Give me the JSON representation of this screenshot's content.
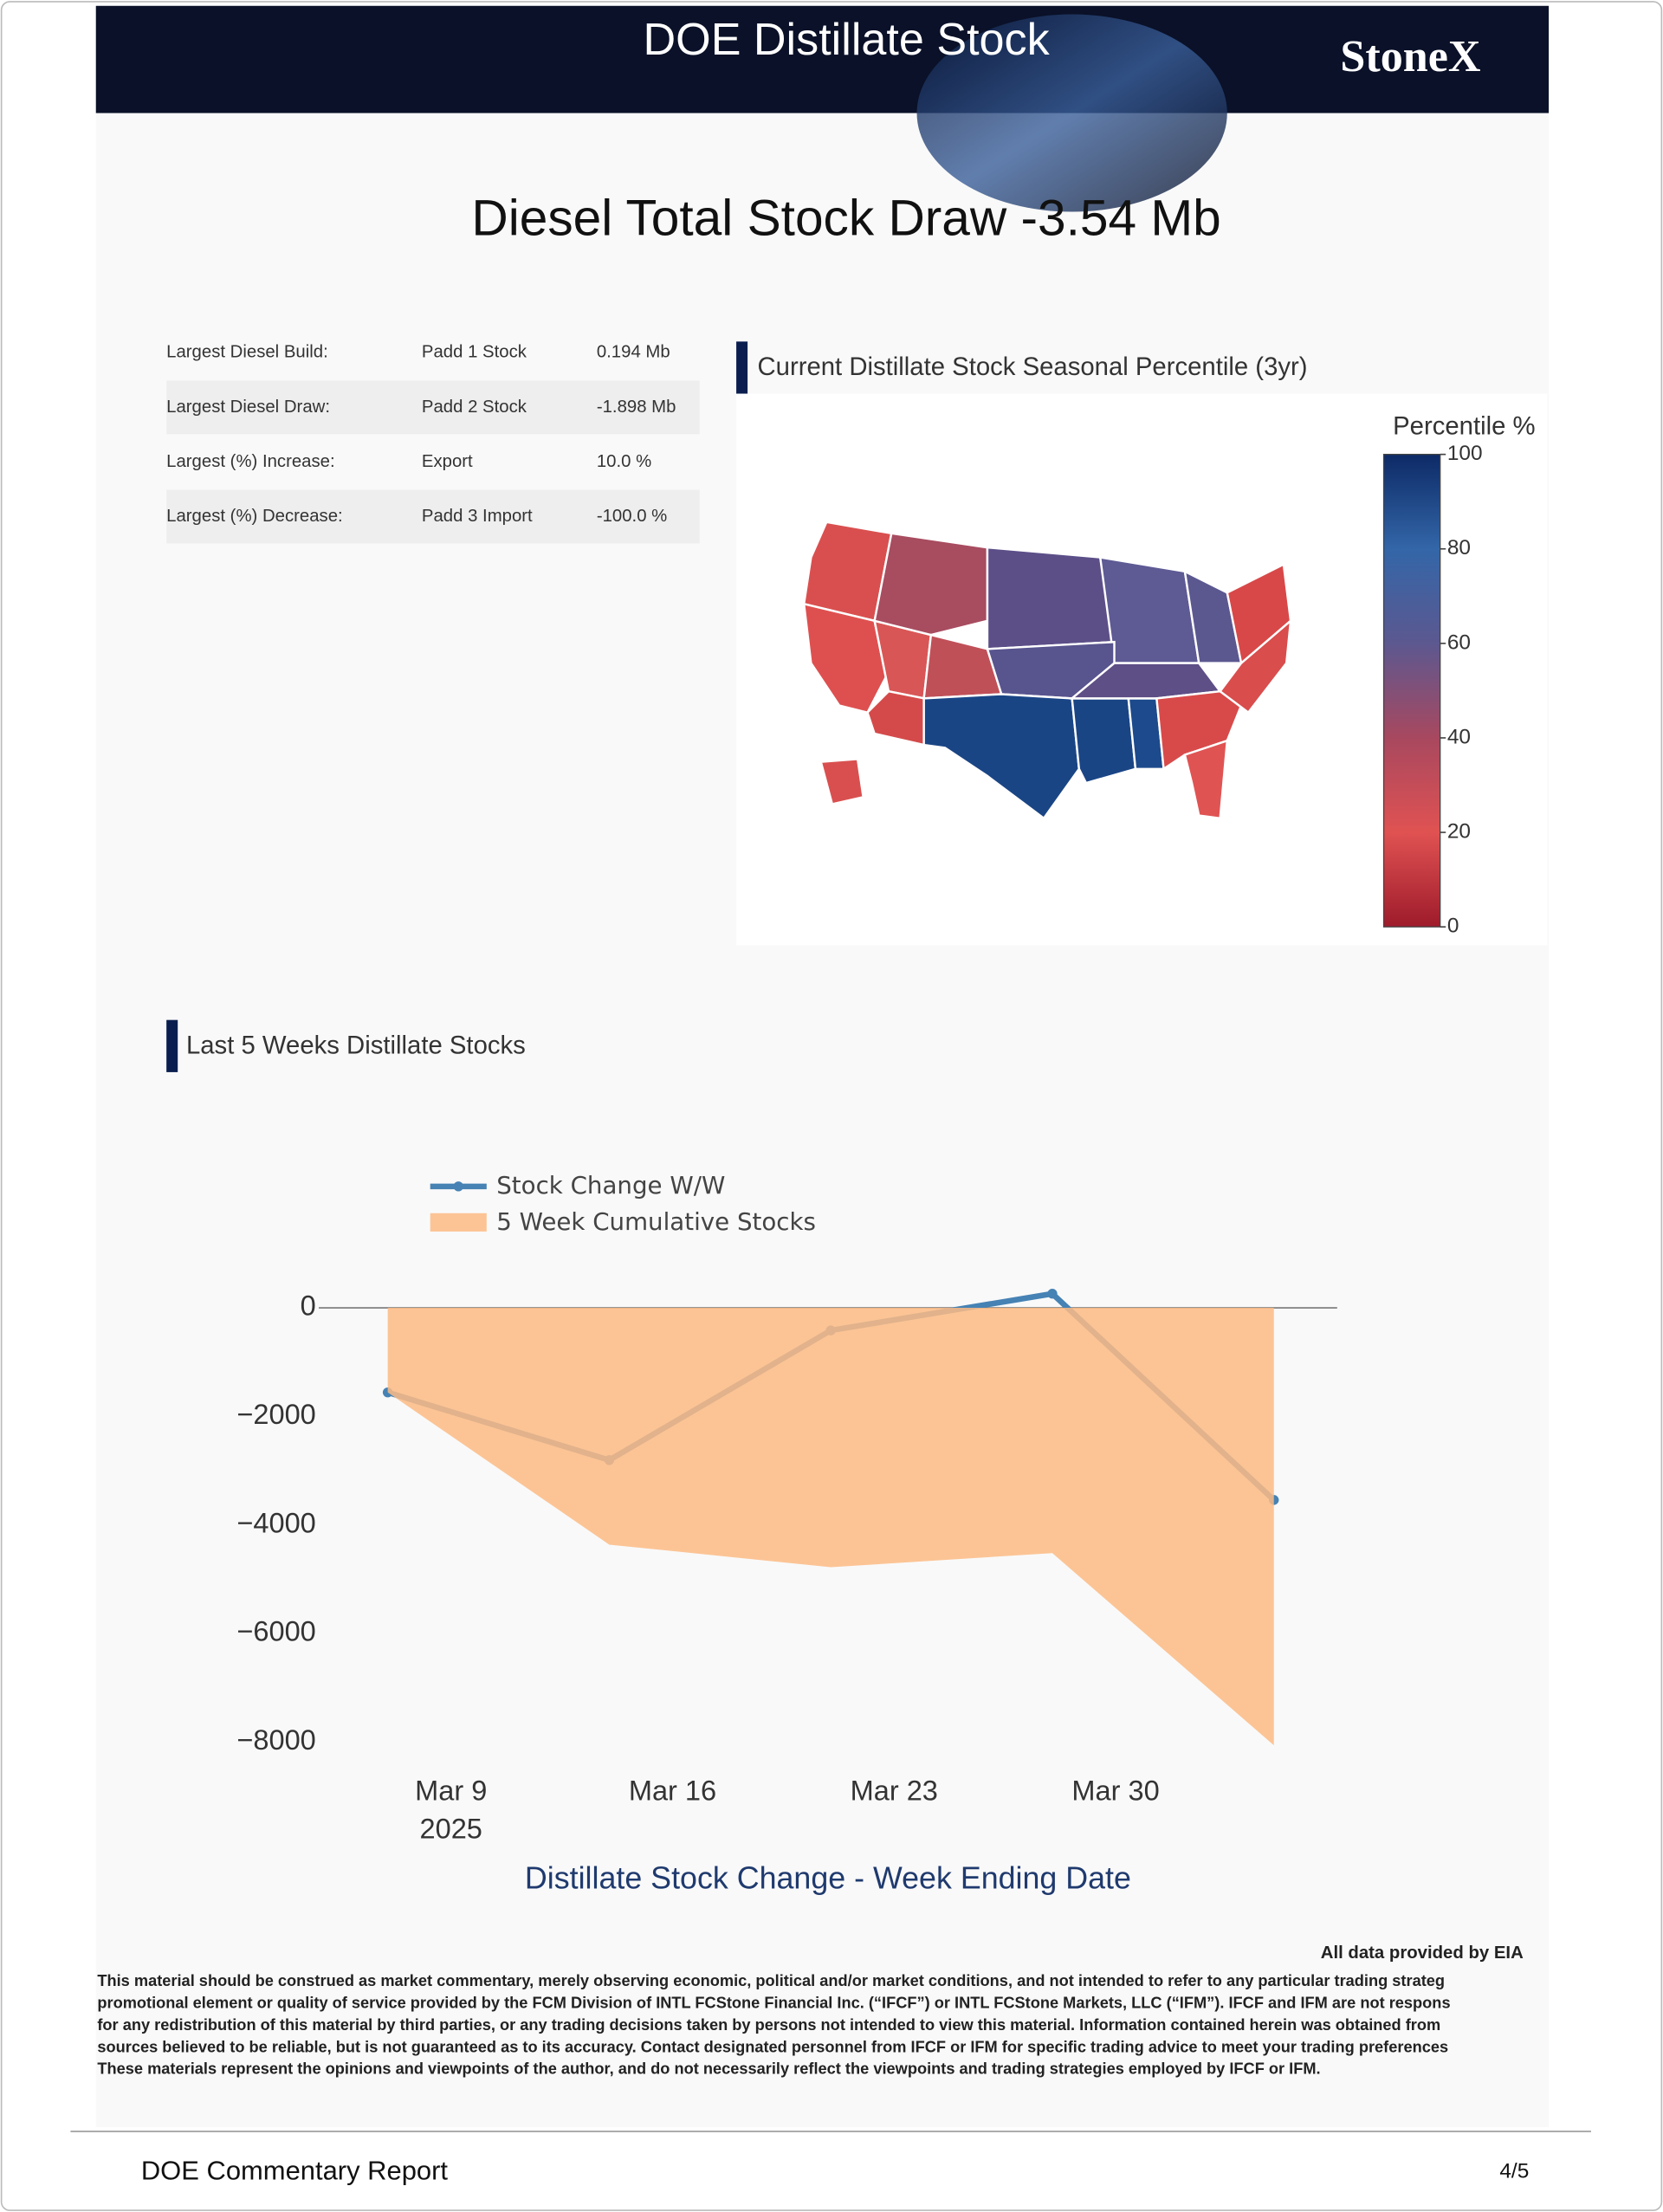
{
  "header": {
    "banner_title": "DOE Distillate Stock",
    "logo": "StoneX"
  },
  "title": "Diesel Total Stock Draw -3.54 Mb",
  "table": {
    "rows": [
      [
        "Largest Diesel Build:",
        "Padd 1 Stock",
        "0.194 Mb"
      ],
      [
        "Largest Diesel Draw:",
        "Padd 2 Stock",
        "-1.898 Mb"
      ],
      [
        "Largest (%) Increase:",
        "Export",
        "10.0 %"
      ],
      [
        "Largest (%) Decrease:",
        "Padd 3 Import",
        "-100.0 %"
      ]
    ]
  },
  "map": {
    "title": "Current Distillate Stock Seasonal Percentile (3yr)",
    "colorbar_title": "Percentile %",
    "clim": [
      0,
      100
    ],
    "colorbar_ticks": [
      0,
      20,
      40,
      60,
      80,
      100
    ]
  },
  "chart_data": {
    "type": "line",
    "section_title": "Last 5 Weeks Distillate Stocks",
    "x_label": "Distillate Stock Change - Week Ending Date",
    "x": [
      "2025-03-07",
      "2025-03-14",
      "2025-03-21",
      "2025-03-28",
      "2025-04-04"
    ],
    "series": [
      {
        "name": "Stock Change W/W",
        "color": "#4682b4",
        "mode": "line",
        "values": [
          -1558,
          -2805,
          -416,
          260,
          -3540
        ]
      },
      {
        "name": "5 Week Cumulative Stocks",
        "color": "#fdbb84",
        "mode": "area",
        "values": [
          -1558,
          -4363,
          -4779,
          -4519,
          -8059
        ]
      }
    ],
    "xlim": [
      "2025-03-05",
      "2025-04-06"
    ],
    "xticks": [
      {
        "value": "2025-03-09",
        "label": "Mar 9",
        "sublabel": "2025"
      },
      {
        "value": "2025-03-16",
        "label": "Mar 16"
      },
      {
        "value": "2025-03-23",
        "label": "Mar 23"
      },
      {
        "value": "2025-03-30",
        "label": "Mar 30"
      }
    ],
    "ylim": [
      -8300,
      600
    ],
    "yticks": [
      0,
      {
        "value": -2000,
        "label": "−2000"
      },
      {
        "value": -4000,
        "label": "−4000"
      },
      {
        "value": -6000,
        "label": "−6000"
      },
      {
        "value": -8000,
        "label": "−8000"
      }
    ],
    "zeroline": true,
    "grid": false,
    "legend": "top-left"
  },
  "source_note": "All data provided by EIA",
  "disclaimer": [
    "This material should be construed as market commentary, merely observing economic, political and/or market conditions, and not intended to refer to any particular trading strateg",
    "promotional element or quality of service provided by the FCM Division of INTL FCStone Financial Inc. (“IFCF”) or INTL FCStone Markets, LLC (“IFM”). IFCF and IFM are not respons",
    "for any redistribution of this material by third parties, or any trading decisions taken by persons not intended to view this material. Information contained herein was obtained from",
    "sources believed to be reliable, but is not guaranteed as to its accuracy. Contact designated personnel from IFCF or IFM for specific trading advice to meet your trading preferences",
    "These materials represent the opinions and viewpoints of the author, and do not necessarily reflect the viewpoints and trading strategies employed by IFCF or IFM."
  ],
  "footer": {
    "left": "DOE Commentary Report",
    "right": "4/5"
  }
}
